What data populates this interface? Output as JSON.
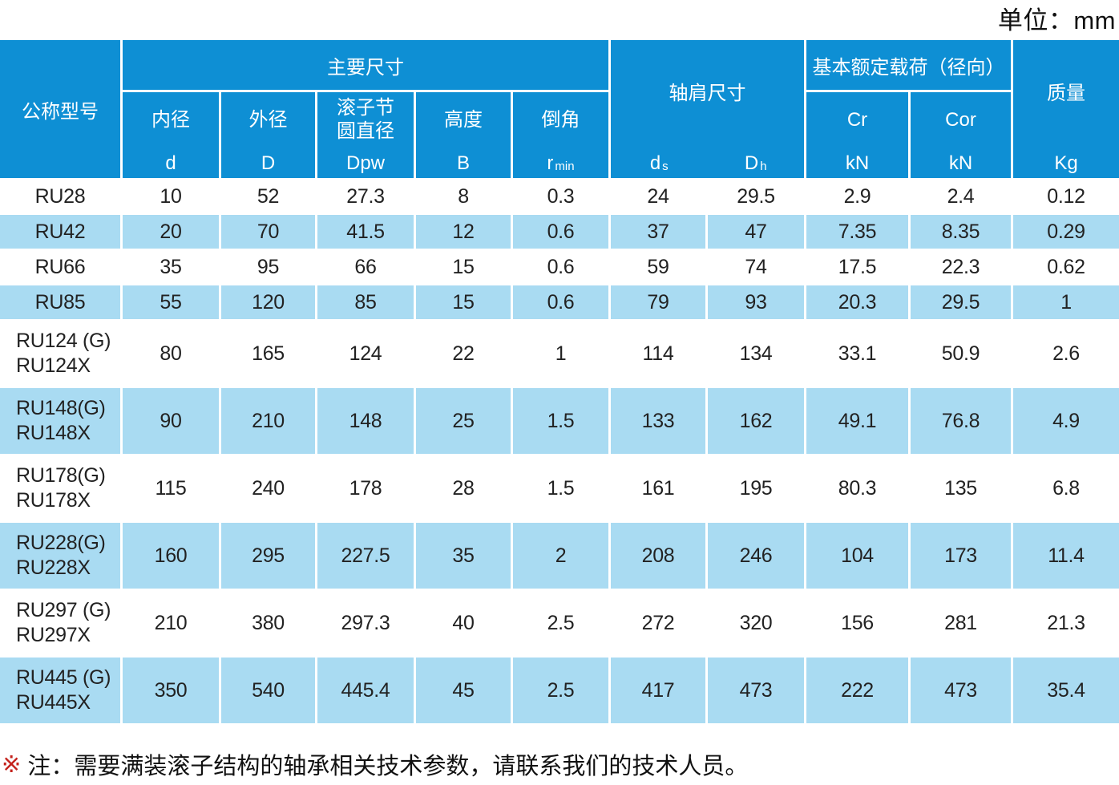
{
  "unit_label": "单位：mm",
  "colors": {
    "header_bg": "#0e8fd4",
    "stripe_bg": "#a9dbf2",
    "note_marker": "#c4221c"
  },
  "table": {
    "header": {
      "model": "公称型号",
      "main_dims": "主要尺寸",
      "inner": {
        "cn": "内径",
        "sym": "d"
      },
      "outer": {
        "cn": "外径",
        "sym": "D"
      },
      "pitch": {
        "cn": "滚子节圆直径",
        "sym": "Dpw"
      },
      "height": {
        "cn": "高度",
        "sym": "B"
      },
      "chamfer": {
        "cn": "倒角",
        "sym": "r",
        "sub": "min"
      },
      "shoulder": {
        "cn": "轴肩尺寸",
        "ds_main": "d",
        "ds_sub": "s",
        "dh_main": "D",
        "dh_sub": "h"
      },
      "load": "基本额定载荷（径向）",
      "cr": {
        "cn": "Cr",
        "sym": "kN"
      },
      "cor": {
        "cn": "Cor",
        "sym": "kN"
      },
      "mass": {
        "cn": "质量",
        "sym": "Kg"
      }
    },
    "rows": [
      {
        "model": [
          "RU28"
        ],
        "values": [
          "10",
          "52",
          "27.3",
          "8",
          "0.3",
          "24",
          "29.5",
          "2.9",
          "2.4",
          "0.12"
        ]
      },
      {
        "model": [
          "RU42"
        ],
        "values": [
          "20",
          "70",
          "41.5",
          "12",
          "0.6",
          "37",
          "47",
          "7.35",
          "8.35",
          "0.29"
        ]
      },
      {
        "model": [
          "RU66"
        ],
        "values": [
          "35",
          "95",
          "66",
          "15",
          "0.6",
          "59",
          "74",
          "17.5",
          "22.3",
          "0.62"
        ]
      },
      {
        "model": [
          "RU85"
        ],
        "values": [
          "55",
          "120",
          "85",
          "15",
          "0.6",
          "79",
          "93",
          "20.3",
          "29.5",
          "1"
        ]
      },
      {
        "model": [
          "RU124 (G)",
          "RU124X"
        ],
        "values": [
          "80",
          "165",
          "124",
          "22",
          "1",
          "114",
          "134",
          "33.1",
          "50.9",
          "2.6"
        ]
      },
      {
        "model": [
          "RU148(G)",
          "RU148X"
        ],
        "values": [
          "90",
          "210",
          "148",
          "25",
          "1.5",
          "133",
          "162",
          "49.1",
          "76.8",
          "4.9"
        ]
      },
      {
        "model": [
          "RU178(G)",
          "RU178X"
        ],
        "values": [
          "115",
          "240",
          "178",
          "28",
          "1.5",
          "161",
          "195",
          "80.3",
          "135",
          "6.8"
        ]
      },
      {
        "model": [
          "RU228(G)",
          "RU228X"
        ],
        "values": [
          "160",
          "295",
          "227.5",
          "35",
          "2",
          "208",
          "246",
          "104",
          "173",
          "11.4"
        ]
      },
      {
        "model": [
          "RU297 (G)",
          "RU297X"
        ],
        "values": [
          "210",
          "380",
          "297.3",
          "40",
          "2.5",
          "272",
          "320",
          "156",
          "281",
          "21.3"
        ]
      },
      {
        "model": [
          "RU445 (G)",
          "RU445X"
        ],
        "values": [
          "350",
          "540",
          "445.4",
          "45",
          "2.5",
          "417",
          "473",
          "222",
          "473",
          "35.4"
        ]
      }
    ]
  },
  "note": {
    "marker": "※",
    "text": "注：需要满装滚子结构的轴承相关技术参数，请联系我们的技术人员。"
  }
}
